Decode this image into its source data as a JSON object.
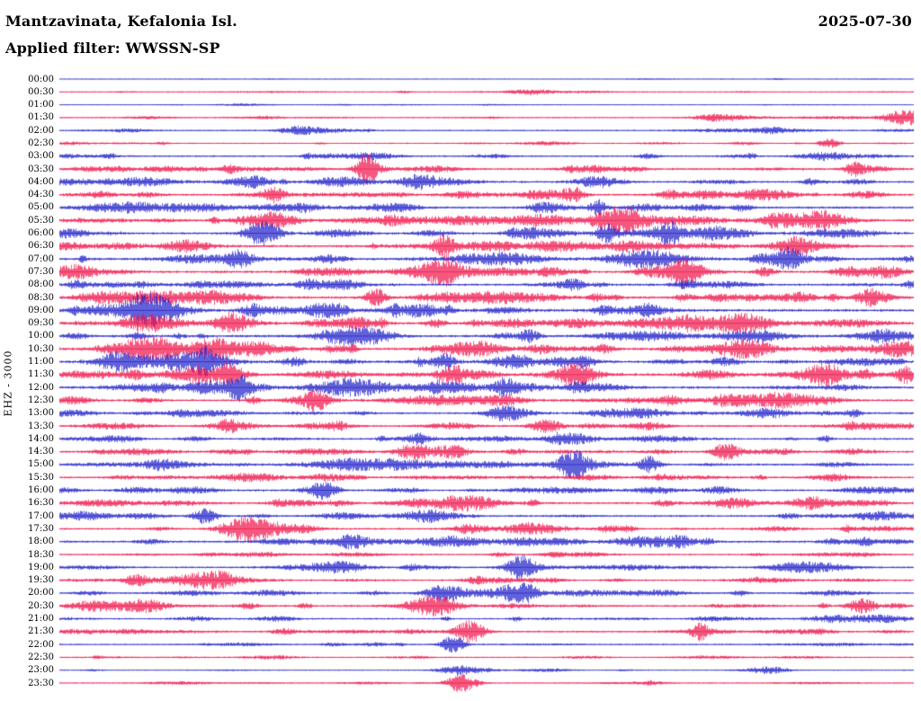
{
  "header": {
    "station": "Mantzavinata, Kefalonia Isl.",
    "date": "2025-07-30",
    "filter": "Applied filter: WWSSN-SP",
    "channel": "EHZ - 3000"
  },
  "chart_data": {
    "type": "line",
    "title": "Mantzavinata, Kefalonia Isl.",
    "subtitle": "Applied filter: WWSSN-SP",
    "date": "2025-07-30",
    "channel": "EHZ - 3000",
    "row_minutes": 30,
    "legend_position": "none",
    "grid": false,
    "colors": {
      "blue": "#1d1dc8",
      "red": "#ef1048"
    },
    "rows": [
      {
        "time": "00:00",
        "color": "blue",
        "activity": 0.08,
        "events": []
      },
      {
        "time": "00:30",
        "color": "red",
        "activity": 0.18,
        "events": [
          [
            0.55,
            3
          ]
        ]
      },
      {
        "time": "01:00",
        "color": "blue",
        "activity": 0.12,
        "events": []
      },
      {
        "time": "01:30",
        "color": "red",
        "activity": 0.2,
        "events": [
          [
            0.99,
            9
          ],
          [
            0.77,
            4
          ]
        ]
      },
      {
        "time": "02:00",
        "color": "blue",
        "activity": 0.25,
        "events": [
          [
            0.28,
            4
          ]
        ]
      },
      {
        "time": "02:30",
        "color": "red",
        "activity": 0.22,
        "events": [
          [
            0.9,
            5
          ]
        ]
      },
      {
        "time": "03:00",
        "color": "blue",
        "activity": 0.35,
        "events": []
      },
      {
        "time": "03:30",
        "color": "red",
        "activity": 0.45,
        "events": [
          [
            0.36,
            14
          ],
          [
            0.93,
            7
          ]
        ]
      },
      {
        "time": "04:00",
        "color": "blue",
        "activity": 0.45,
        "events": [
          [
            0.42,
            7
          ],
          [
            0.63,
            6
          ]
        ]
      },
      {
        "time": "04:30",
        "color": "red",
        "activity": 0.5,
        "events": [
          [
            0.25,
            8
          ],
          [
            0.6,
            6
          ]
        ]
      },
      {
        "time": "05:00",
        "color": "blue",
        "activity": 0.55,
        "events": [
          [
            0.63,
            8
          ]
        ]
      },
      {
        "time": "05:30",
        "color": "red",
        "activity": 0.6,
        "events": [
          [
            0.25,
            9
          ],
          [
            0.66,
            10
          ]
        ]
      },
      {
        "time": "06:00",
        "color": "blue",
        "activity": 0.6,
        "events": [
          [
            0.24,
            12
          ],
          [
            0.64,
            9
          ],
          [
            0.71,
            10
          ]
        ]
      },
      {
        "time": "06:30",
        "color": "red",
        "activity": 0.6,
        "events": [
          [
            0.45,
            10
          ],
          [
            0.86,
            8
          ]
        ]
      },
      {
        "time": "07:00",
        "color": "blue",
        "activity": 0.6,
        "events": [
          [
            0.21,
            9
          ],
          [
            0.85,
            7
          ]
        ]
      },
      {
        "time": "07:30",
        "color": "red",
        "activity": 0.6,
        "events": [
          [
            0.45,
            9
          ],
          [
            0.73,
            10
          ]
        ]
      },
      {
        "time": "08:00",
        "color": "blue",
        "activity": 0.55,
        "events": [
          [
            0.6,
            6
          ]
        ]
      },
      {
        "time": "08:30",
        "color": "red",
        "activity": 0.6,
        "events": [
          [
            0.37,
            10
          ],
          [
            0.95,
            7
          ]
        ]
      },
      {
        "time": "09:00",
        "color": "blue",
        "activity": 0.65,
        "events": [
          [
            0.1,
            12
          ],
          [
            0.31,
            8
          ]
        ]
      },
      {
        "time": "09:30",
        "color": "red",
        "activity": 0.65,
        "events": [
          [
            0.2,
            9
          ],
          [
            0.8,
            11
          ]
        ]
      },
      {
        "time": "10:00",
        "color": "blue",
        "activity": 0.6,
        "events": [
          [
            0.55,
            7
          ]
        ]
      },
      {
        "time": "10:30",
        "color": "red",
        "activity": 0.65,
        "events": [
          [
            0.18,
            12
          ],
          [
            0.81,
            8
          ]
        ]
      },
      {
        "time": "11:00",
        "color": "blue",
        "activity": 0.6,
        "events": [
          [
            0.07,
            8
          ],
          [
            0.17,
            9
          ],
          [
            0.45,
            8
          ]
        ]
      },
      {
        "time": "11:30",
        "color": "red",
        "activity": 0.65,
        "events": [
          [
            0.2,
            9
          ],
          [
            0.46,
            10
          ],
          [
            0.99,
            9
          ]
        ]
      },
      {
        "time": "12:00",
        "color": "blue",
        "activity": 0.6,
        "events": [
          [
            0.21,
            10
          ],
          [
            0.52,
            9
          ]
        ]
      },
      {
        "time": "12:30",
        "color": "red",
        "activity": 0.55,
        "events": [
          [
            0.3,
            8
          ],
          [
            0.85,
            7
          ]
        ]
      },
      {
        "time": "13:00",
        "color": "blue",
        "activity": 0.5,
        "events": [
          [
            0.52,
            6
          ]
        ]
      },
      {
        "time": "13:30",
        "color": "red",
        "activity": 0.45,
        "events": [
          [
            0.57,
            7
          ]
        ]
      },
      {
        "time": "14:00",
        "color": "blue",
        "activity": 0.45,
        "events": [
          [
            0.6,
            6
          ]
        ]
      },
      {
        "time": "14:30",
        "color": "red",
        "activity": 0.5,
        "events": [
          [
            0.41,
            7
          ],
          [
            0.78,
            9
          ]
        ]
      },
      {
        "time": "15:00",
        "color": "blue",
        "activity": 0.55,
        "events": [
          [
            0.6,
            10
          ],
          [
            0.69,
            9
          ]
        ]
      },
      {
        "time": "15:30",
        "color": "red",
        "activity": 0.45,
        "events": []
      },
      {
        "time": "16:00",
        "color": "blue",
        "activity": 0.5,
        "events": [
          [
            0.31,
            6
          ]
        ]
      },
      {
        "time": "16:30",
        "color": "red",
        "activity": 0.5,
        "events": [
          [
            0.88,
            7
          ]
        ]
      },
      {
        "time": "17:00",
        "color": "blue",
        "activity": 0.45,
        "events": [
          [
            0.17,
            8
          ]
        ]
      },
      {
        "time": "17:30",
        "color": "red",
        "activity": 0.45,
        "events": [
          [
            0.22,
            9
          ]
        ]
      },
      {
        "time": "18:00",
        "color": "blue",
        "activity": 0.5,
        "events": [
          [
            0.34,
            8
          ]
        ]
      },
      {
        "time": "18:30",
        "color": "red",
        "activity": 0.3,
        "events": []
      },
      {
        "time": "19:00",
        "color": "blue",
        "activity": 0.4,
        "events": [
          [
            0.54,
            12
          ]
        ]
      },
      {
        "time": "19:30",
        "color": "red",
        "activity": 0.35,
        "events": [
          [
            0.09,
            6
          ],
          [
            0.18,
            7
          ]
        ]
      },
      {
        "time": "20:00",
        "color": "blue",
        "activity": 0.4,
        "events": [
          [
            0.45,
            9
          ],
          [
            0.54,
            8
          ]
        ]
      },
      {
        "time": "20:30",
        "color": "red",
        "activity": 0.45,
        "events": [
          [
            0.44,
            10
          ],
          [
            0.94,
            8
          ]
        ]
      },
      {
        "time": "21:00",
        "color": "blue",
        "activity": 0.35,
        "events": []
      },
      {
        "time": "21:30",
        "color": "red",
        "activity": 0.4,
        "events": [
          [
            0.48,
            12
          ],
          [
            0.75,
            7
          ]
        ]
      },
      {
        "time": "22:00",
        "color": "blue",
        "activity": 0.28,
        "events": [
          [
            0.46,
            12
          ]
        ]
      },
      {
        "time": "22:30",
        "color": "red",
        "activity": 0.22,
        "events": []
      },
      {
        "time": "23:00",
        "color": "blue",
        "activity": 0.15,
        "events": [
          [
            0.47,
            5
          ],
          [
            0.83,
            4
          ]
        ]
      },
      {
        "time": "23:30",
        "color": "red",
        "activity": 0.2,
        "events": [
          [
            0.47,
            10
          ]
        ]
      }
    ]
  }
}
